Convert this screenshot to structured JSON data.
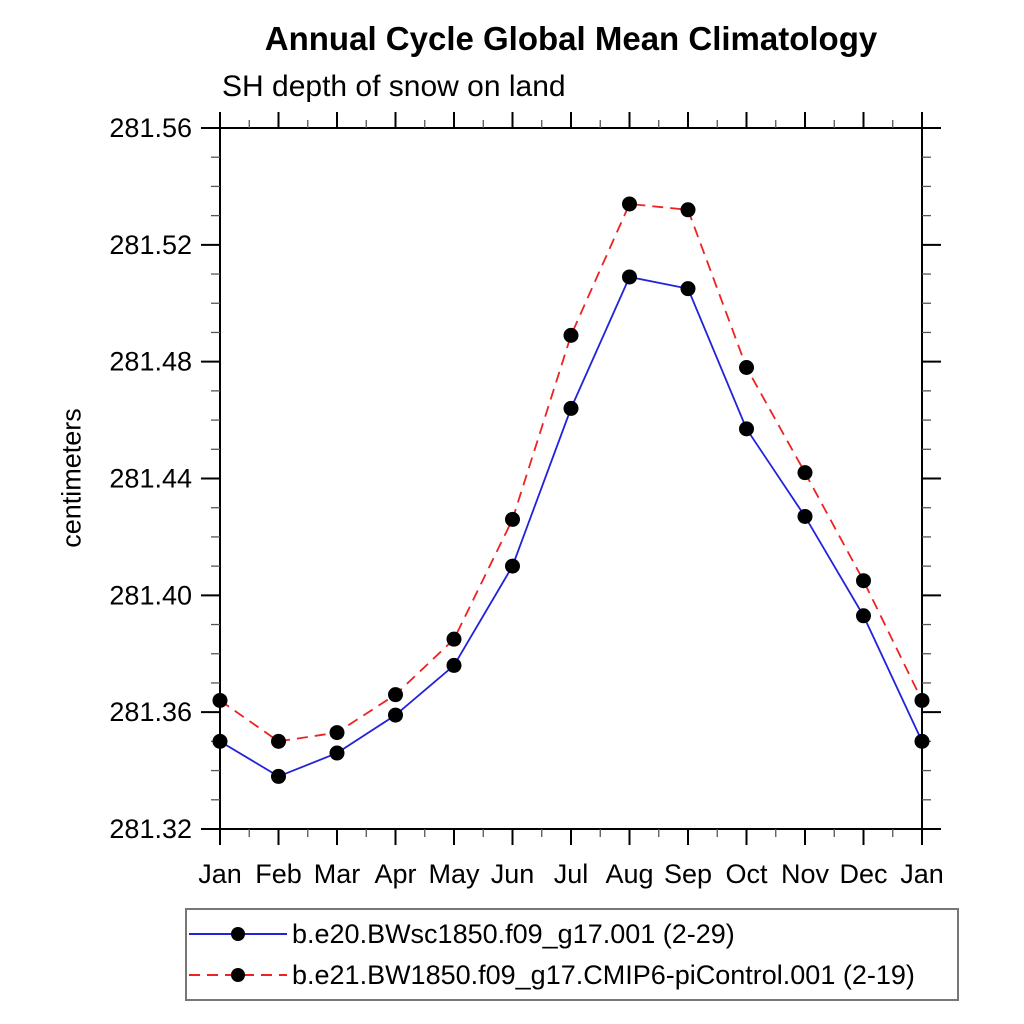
{
  "chart_data": {
    "type": "line",
    "title": "Annual Cycle Global Mean Climatology",
    "subtitle": "SH depth of snow on land",
    "ylabel": "centimeters",
    "xlabel": "",
    "x_categories": [
      "Jan",
      "Feb",
      "Mar",
      "Apr",
      "May",
      "Jun",
      "Jul",
      "Aug",
      "Sep",
      "Oct",
      "Nov",
      "Dec",
      "Jan"
    ],
    "ylim": [
      281.32,
      281.56
    ],
    "y_major_step": 0.04,
    "y_minor_step": 0.01,
    "y_tick_labels": [
      "281.32",
      "281.36",
      "281.40",
      "281.44",
      "281.48",
      "281.52",
      "281.56"
    ],
    "grid": false,
    "legend_position": "bottom",
    "frame_color": "#000000",
    "marker": "filled-circle",
    "marker_color": "#000000",
    "series": [
      {
        "name": "b.e20.BWsc1850.f09_g17.001 (2-29)",
        "color": "#2222dd",
        "style": "solid",
        "values": [
          281.35,
          281.338,
          281.346,
          281.359,
          281.376,
          281.41,
          281.464,
          281.509,
          281.505,
          281.457,
          281.427,
          281.393,
          281.35
        ]
      },
      {
        "name": "b.e21.BW1850.f09_g17.CMIP6-piControl.001 (2-19)",
        "color": "#ee2222",
        "style": "dashed",
        "values": [
          281.364,
          281.35,
          281.353,
          281.366,
          281.385,
          281.426,
          281.489,
          281.534,
          281.532,
          281.478,
          281.442,
          281.405,
          281.364
        ]
      }
    ]
  }
}
